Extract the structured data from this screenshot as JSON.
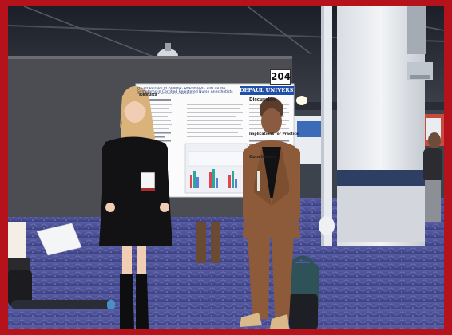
{
  "photo": {
    "poster_number": "204",
    "poster_institution": "DEPAUL UNIVERSITY",
    "poster_title": "A Comparison of Anxiety, Depression, and Stress Symptoms in Certified Registered Nurse Anesthetists and Student Nurse Anesthetists",
    "poster_sections": {
      "results": "Results",
      "discussion": "Discussion",
      "implications": "Implications for Practice",
      "conclusion": "Conclusion"
    },
    "colors": {
      "border": "#b5121b",
      "carpet": "#4a4f93",
      "board": "#4b4d52",
      "poster_accent": "#1f4fa8"
    }
  }
}
